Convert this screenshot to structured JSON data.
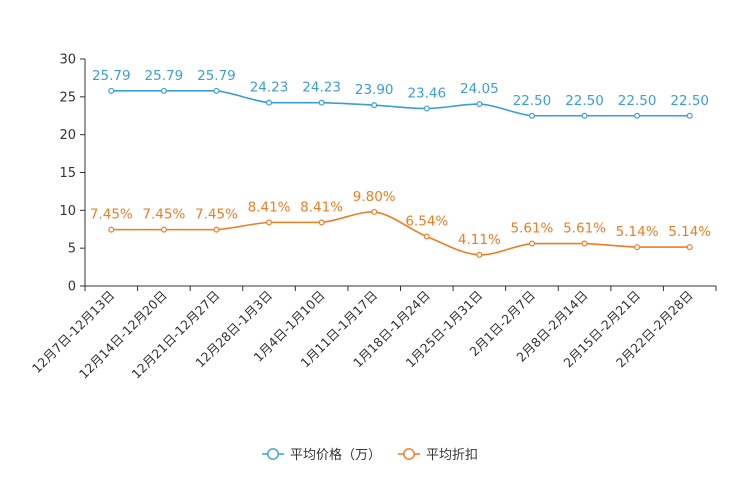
{
  "chart_data": {
    "type": "line",
    "title": "",
    "xlabel": "",
    "ylabel": "",
    "ylim": [
      0,
      30
    ],
    "yticks": [
      0,
      5,
      10,
      15,
      20,
      25,
      30
    ],
    "grid": false,
    "legend_position": "bottom-center",
    "categories": [
      "12月7日-12月13日",
      "12月14日-12月20日",
      "12月21日-12月27日",
      "12月28日-1月3日",
      "1月4日-1月10日",
      "1月11日-1月17日",
      "1月18日-1月24日",
      "1月25日-1月31日",
      "2月1日-2月7日",
      "2月8日-2月14日",
      "2月15日-2月21日",
      "2月22日-2月28日"
    ],
    "series": [
      {
        "name": "平均价格（万）",
        "color": "#3a9fd6",
        "values": [
          25.79,
          25.79,
          25.79,
          24.23,
          24.23,
          23.9,
          23.46,
          24.05,
          22.5,
          22.5,
          22.5,
          22.5
        ],
        "labels": [
          "25.79",
          "25.79",
          "25.79",
          "24.23",
          "24.23",
          "23.90",
          "23.46",
          "24.05",
          "22.50",
          "22.50",
          "22.50",
          "22.50"
        ]
      },
      {
        "name": "平均折扣",
        "color": "#f07c22",
        "values": [
          7.45,
          7.45,
          7.45,
          8.41,
          8.41,
          9.8,
          6.54,
          4.11,
          5.61,
          5.61,
          5.14,
          5.14
        ],
        "labels": [
          "7.45%",
          "7.45%",
          "7.45%",
          "8.41%",
          "8.41%",
          "9.80%",
          "6.54%",
          "4.11%",
          "5.61%",
          "5.61%",
          "5.14%",
          "5.14%"
        ]
      }
    ]
  }
}
